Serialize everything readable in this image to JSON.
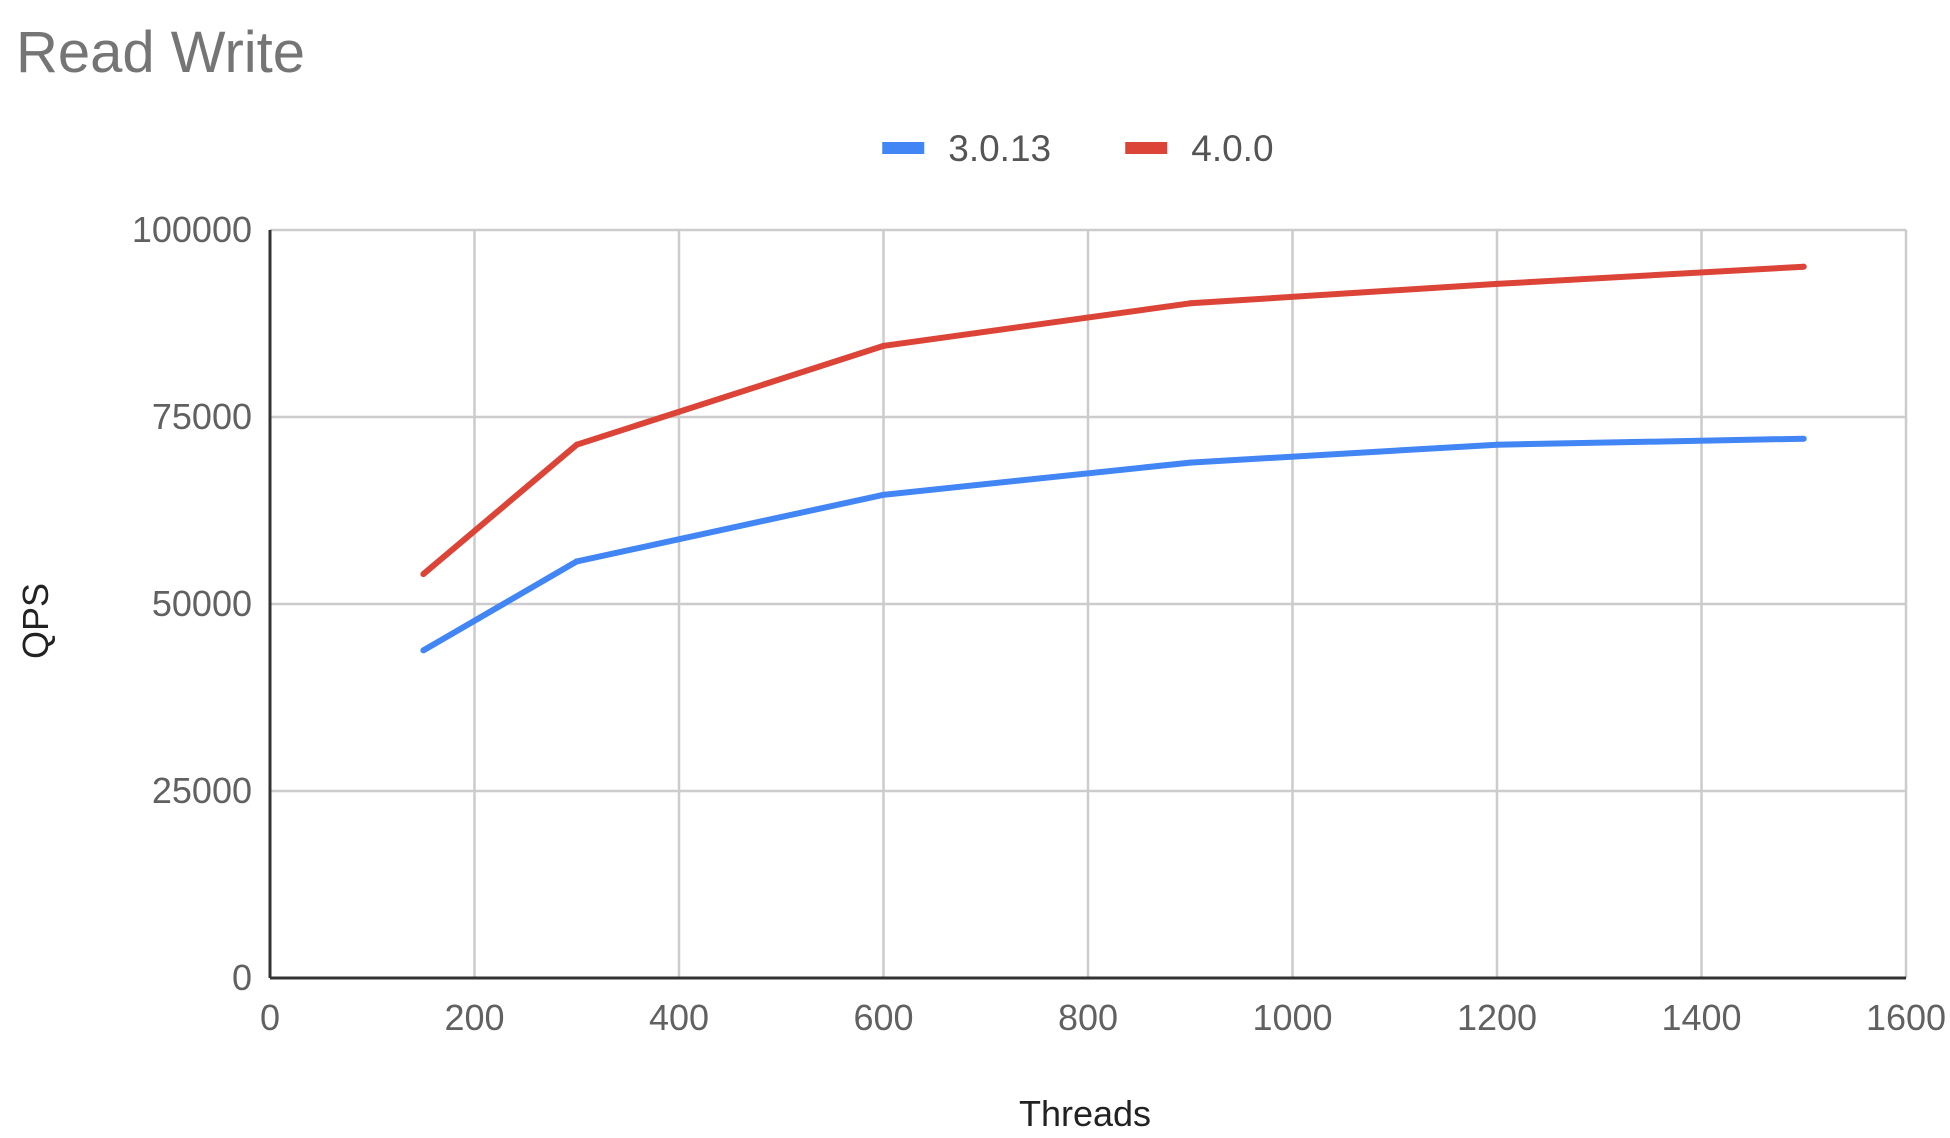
{
  "chart_data": {
    "type": "line",
    "title": "Read Write",
    "xlabel": "Threads",
    "ylabel": "QPS",
    "x": [
      150,
      300,
      600,
      900,
      1200,
      1500
    ],
    "series": [
      {
        "name": "3.0.13",
        "color": "#4285f4",
        "values": [
          43800,
          55700,
          64600,
          68900,
          71300,
          72100
        ]
      },
      {
        "name": "4.0.0",
        "color": "#db4437",
        "values": [
          54000,
          71300,
          84500,
          90200,
          92800,
          95100
        ]
      }
    ],
    "xlim": [
      0,
      1600
    ],
    "ylim": [
      0,
      100000
    ],
    "xticks": [
      "0",
      "200",
      "400",
      "600",
      "800",
      "1000",
      "1200",
      "1400",
      "1600"
    ],
    "yticks": [
      "0",
      "25000",
      "50000",
      "75000",
      "100000"
    ],
    "grid": true,
    "legend_position": "top"
  }
}
